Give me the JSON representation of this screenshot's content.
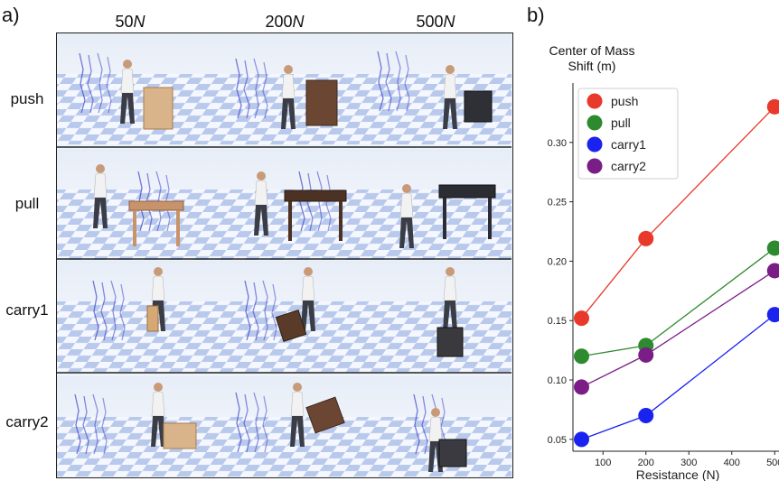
{
  "panel_a": {
    "label": "a)",
    "columns": [
      {
        "num": "50",
        "unit": "N"
      },
      {
        "num": "200",
        "unit": "N"
      },
      {
        "num": "500",
        "unit": "N"
      }
    ],
    "rows": [
      "push",
      "pull",
      "carry1",
      "carry2"
    ]
  },
  "panel_b": {
    "label": "b)",
    "title_line1": "Center of Mass",
    "title_line2": "Shift (m)"
  },
  "chart_data": {
    "type": "line",
    "title": "Center of Mass Shift (m)",
    "xlabel": "Resistance (N)",
    "ylabel": "Center of Mass Shift (m)",
    "x": [
      50,
      200,
      500
    ],
    "xticks": [
      100,
      200,
      300,
      400,
      500
    ],
    "yticks": [
      0.05,
      0.1,
      0.15,
      0.2,
      0.25,
      0.3
    ],
    "xlim": [
      30,
      510
    ],
    "ylim": [
      0.04,
      0.35
    ],
    "legend_position": "top-left",
    "grid": false,
    "series": [
      {
        "name": "push",
        "color": "#e8392a",
        "values": [
          0.152,
          0.219,
          0.33
        ]
      },
      {
        "name": "pull",
        "color": "#2e8a2e",
        "values": [
          0.12,
          0.129,
          0.211
        ]
      },
      {
        "name": "carry1",
        "color": "#1a22f0",
        "values": [
          0.05,
          0.07,
          0.155
        ]
      },
      {
        "name": "carry2",
        "color": "#7a1d86",
        "values": [
          0.094,
          0.121,
          0.192
        ]
      }
    ]
  }
}
